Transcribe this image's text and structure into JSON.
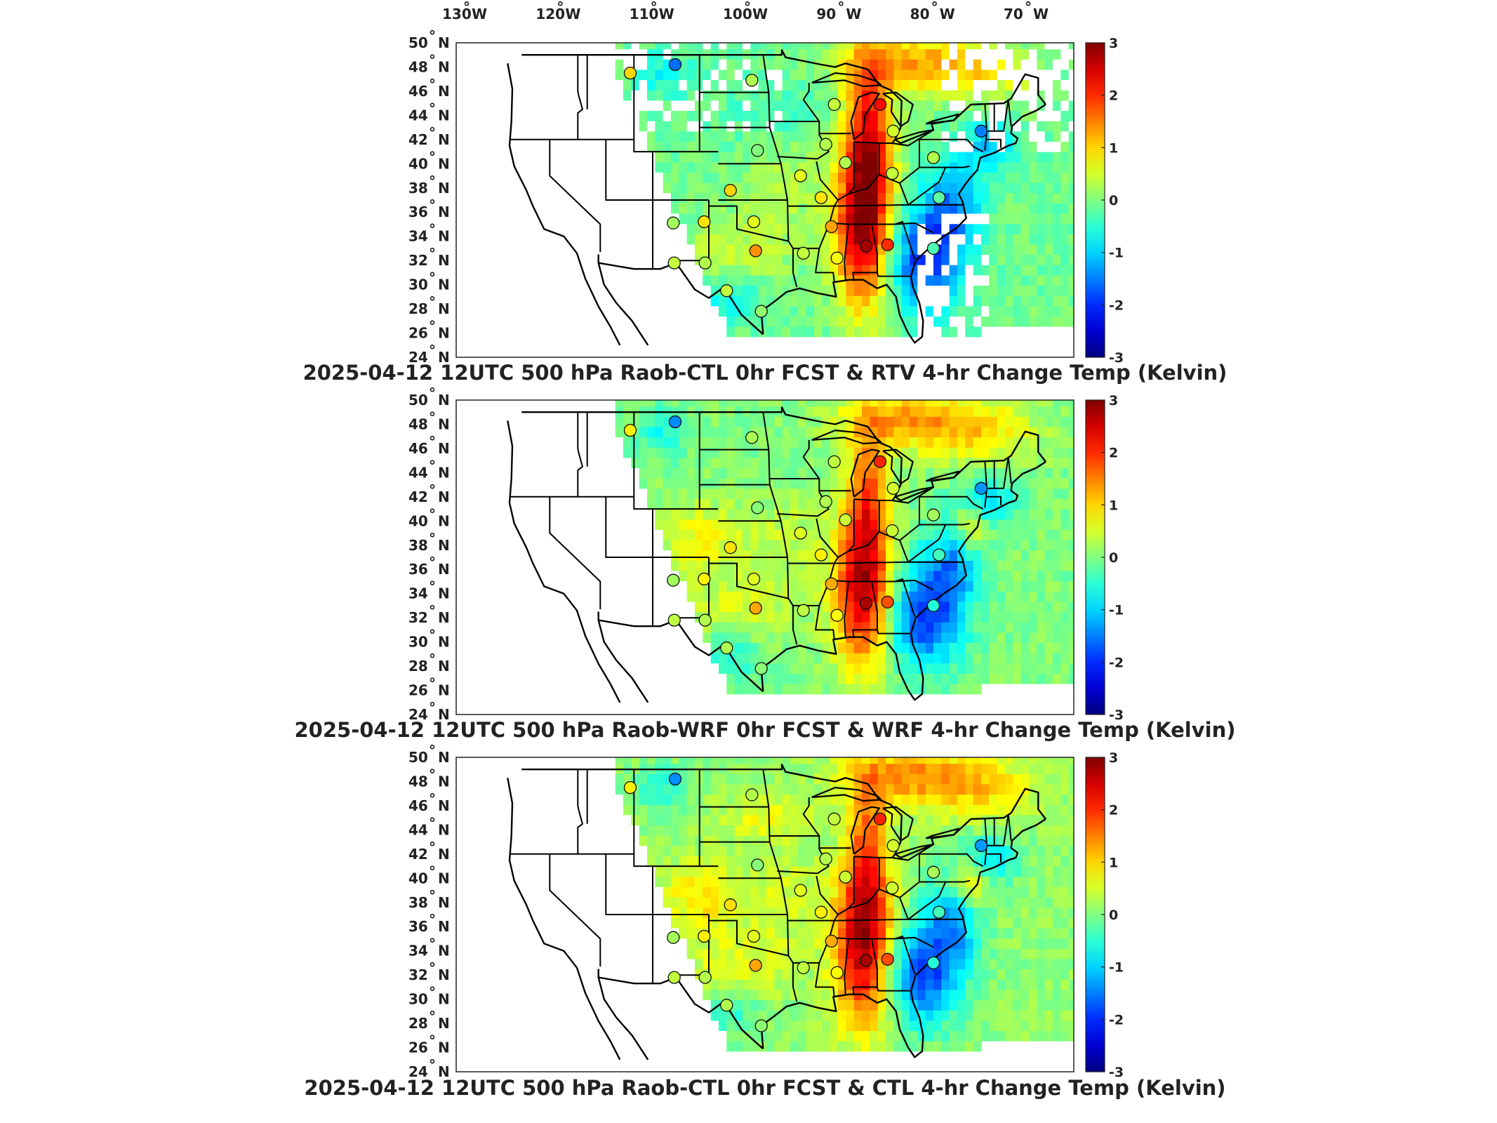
{
  "figure": {
    "lon_labels": [
      "130",
      "120",
      "110",
      "100",
      "90",
      "80",
      "70"
    ],
    "lon_suffix": "W",
    "lat_labels": [
      "50",
      "48",
      "46",
      "44",
      "42",
      "40",
      "38",
      "36",
      "34",
      "32",
      "30",
      "28",
      "26",
      "24"
    ],
    "lat_suffix": "N",
    "degree_symbol": "°",
    "colorbar": {
      "ticks": [
        "3",
        "2",
        "1",
        "0",
        "-1",
        "-2",
        "-3"
      ],
      "range": [
        -3,
        3
      ],
      "colormap": "jet",
      "colors": [
        "#00008f",
        "#0000ff",
        "#00ffff",
        "#ffff00",
        "#ff0000",
        "#800000"
      ]
    }
  },
  "panels": [
    {
      "id": "rtv",
      "title": "2025-04-12 12UTC 500 hPa Raob-CTL 0hr FCST & RTV 4-hr Change Temp (Kelvin)",
      "field_style": "retrieval"
    },
    {
      "id": "wrf",
      "title": "2025-04-12 12UTC 500 hPa Raob-WRF 0hr FCST & WRF 4-hr Change Temp (Kelvin)",
      "field_style": "wrf"
    },
    {
      "id": "ctl",
      "title": "2025-04-12 12UTC 500 hPa Raob-CTL 0hr FCST & CTL 4-hr Change Temp (Kelvin)",
      "field_style": "ctl"
    }
  ],
  "raob_stations": [
    {
      "lon": -111.4,
      "lat": 47.5,
      "value": 1.0
    },
    {
      "lon": -106.6,
      "lat": 48.2,
      "value": -1.6
    },
    {
      "lon": -98.4,
      "lat": 46.9,
      "value": 0.3
    },
    {
      "lon": -89.6,
      "lat": 44.9,
      "value": 0.4
    },
    {
      "lon": -84.7,
      "lat": 44.9,
      "value": 2.2
    },
    {
      "lon": -83.3,
      "lat": 42.7,
      "value": 0.5
    },
    {
      "lon": -73.9,
      "lat": 42.7,
      "value": -1.5
    },
    {
      "lon": -90.5,
      "lat": 41.6,
      "value": 0.3
    },
    {
      "lon": -97.8,
      "lat": 41.1,
      "value": 0.0
    },
    {
      "lon": -88.4,
      "lat": 40.1,
      "value": 0.3
    },
    {
      "lon": -83.4,
      "lat": 39.2,
      "value": 0.4
    },
    {
      "lon": -79.0,
      "lat": 40.5,
      "value": 0.3
    },
    {
      "lon": -93.2,
      "lat": 39.0,
      "value": 0.6
    },
    {
      "lon": -100.7,
      "lat": 37.8,
      "value": 1.0
    },
    {
      "lon": -91.0,
      "lat": 37.2,
      "value": 0.9
    },
    {
      "lon": -78.4,
      "lat": 37.2,
      "value": -0.2
    },
    {
      "lon": -106.8,
      "lat": 35.1,
      "value": 0.2
    },
    {
      "lon": -103.5,
      "lat": 35.2,
      "value": 0.9
    },
    {
      "lon": -98.2,
      "lat": 35.2,
      "value": 0.6
    },
    {
      "lon": -89.9,
      "lat": 34.8,
      "value": 1.3
    },
    {
      "lon": -86.2,
      "lat": 33.2,
      "value": 2.8
    },
    {
      "lon": -83.9,
      "lat": 33.3,
      "value": 2.0
    },
    {
      "lon": -79.0,
      "lat": 33.0,
      "value": -0.3
    },
    {
      "lon": -98.0,
      "lat": 32.8,
      "value": 1.4
    },
    {
      "lon": -92.9,
      "lat": 32.6,
      "value": 0.4
    },
    {
      "lon": -89.3,
      "lat": 32.2,
      "value": 0.7
    },
    {
      "lon": -106.7,
      "lat": 31.8,
      "value": 0.4
    },
    {
      "lon": -103.4,
      "lat": 31.8,
      "value": 0.3
    },
    {
      "lon": -101.1,
      "lat": 29.5,
      "value": 0.4
    },
    {
      "lon": -97.4,
      "lat": 27.8,
      "value": 0.1
    }
  ]
}
